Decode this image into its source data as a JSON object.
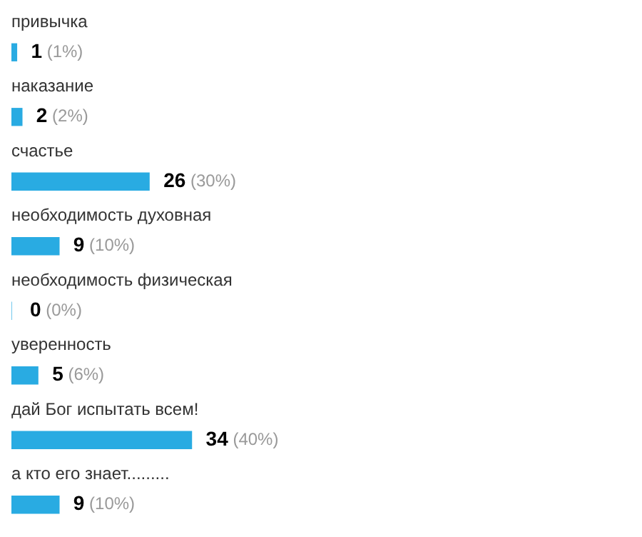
{
  "chart_data": {
    "type": "bar",
    "orientation": "horizontal",
    "categories": [
      "привычка",
      "наказание",
      "счастье",
      "необходимость духовная",
      "необходимость физическая",
      "уверенность",
      "дай Бог испытать всем!",
      "а кто его знает........."
    ],
    "values": [
      1,
      2,
      26,
      9,
      0,
      5,
      34,
      9
    ],
    "value_labels": [
      "1 (1%)",
      "2 (2%)",
      "26 (30%)",
      "9 (10%)",
      "0 (0%)",
      "5 (6%)",
      "34 (40%)",
      "9 (10%)"
    ],
    "color": "#29abe2"
  }
}
